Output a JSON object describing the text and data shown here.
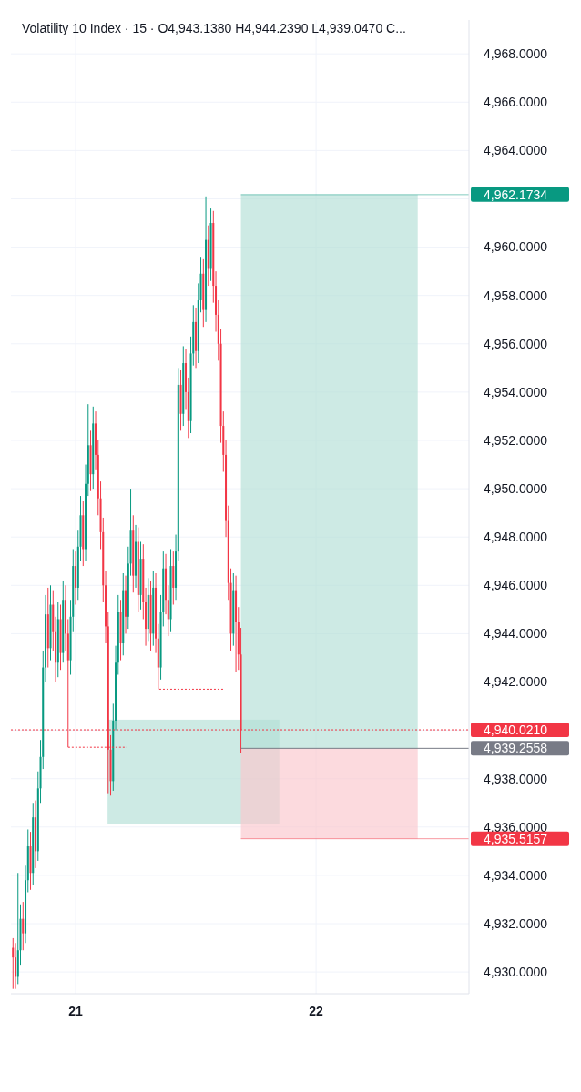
{
  "chart_data": {
    "type": "candlestick",
    "title": "Volatility 10 Index · 15 · O4,943.1380 H4,944.2390 L4,939.0470 C...",
    "x": [
      20.7396,
      20.75,
      20.7604,
      20.7708,
      20.7813,
      20.7917,
      20.8021,
      20.8125,
      20.8229,
      20.8333,
      20.8438,
      20.8542,
      20.8646,
      20.875,
      20.8854,
      20.8958,
      20.9063,
      20.9167,
      20.9271,
      20.9375,
      20.9479,
      20.9583,
      20.9688,
      20.9792,
      20.9896,
      21.0,
      21.0104,
      21.0208,
      21.0313,
      21.0417,
      21.0521,
      21.0625,
      21.0729,
      21.0833,
      21.0938,
      21.1042,
      21.1146,
      21.125,
      21.1354,
      21.1458,
      21.1563,
      21.1667,
      21.1771,
      21.1875,
      21.1979,
      21.2083,
      21.2188,
      21.2292,
      21.2396,
      21.25,
      21.2604,
      21.2708,
      21.2813,
      21.2917,
      21.3021,
      21.3125,
      21.3229,
      21.3333,
      21.3438,
      21.3542,
      21.3646,
      21.375,
      21.3854,
      21.3958,
      21.4063,
      21.4167,
      21.4271,
      21.4375,
      21.4479,
      21.4583,
      21.4688,
      21.4792,
      21.4896,
      21.5,
      21.5104,
      21.5208,
      21.5313,
      21.5417,
      21.5521,
      21.5625,
      21.5729,
      21.5833,
      21.5938,
      21.6042,
      21.6146,
      21.625,
      21.6354,
      21.6458,
      21.6563,
      21.6667,
      21.6771,
      21.6875
    ],
    "ohlc": [
      [
        4931.0,
        4931.4,
        4929.3,
        4930.6
      ],
      [
        4930.6,
        4931.2,
        4929.3,
        4929.8
      ],
      [
        4929.8,
        4934.1,
        4929.5,
        4930.9
      ],
      [
        4930.9,
        4932.8,
        4930.3,
        4932.2
      ],
      [
        4932.2,
        4932.9,
        4930.9,
        4931.6
      ],
      [
        4931.6,
        4934.4,
        4931.2,
        4933.8
      ],
      [
        4933.8,
        4935.9,
        4933.3,
        4935.2
      ],
      [
        4935.2,
        4935.8,
        4933.4,
        4934.1
      ],
      [
        4934.1,
        4937.0,
        4933.6,
        4936.4
      ],
      [
        4936.4,
        4937.1,
        4934.3,
        4935.0
      ],
      [
        4935.0,
        4938.3,
        4934.6,
        4937.6
      ],
      [
        4937.6,
        4939.6,
        4937.0,
        4938.9
      ],
      [
        4938.9,
        4943.3,
        4938.4,
        4942.6
      ],
      [
        4942.6,
        4945.6,
        4942.0,
        4944.8
      ],
      [
        4944.8,
        4945.9,
        4942.6,
        4943.4
      ],
      [
        4943.4,
        4946.0,
        4942.9,
        4945.2
      ],
      [
        4945.2,
        4945.8,
        4943.3,
        4944.1
      ],
      [
        4944.1,
        4944.7,
        4942.0,
        4942.8
      ],
      [
        4942.8,
        4945.3,
        4942.2,
        4944.6
      ],
      [
        4944.6,
        4945.2,
        4942.5,
        4943.2
      ],
      [
        4943.2,
        4946.2,
        4942.8,
        4945.4
      ],
      [
        4945.4,
        4946.0,
        4943.3,
        4944.0
      ],
      [
        4944.0,
        4944.6,
        4939.3,
        4942.9
      ],
      [
        4942.9,
        4945.4,
        4942.3,
        4944.7
      ],
      [
        4944.7,
        4947.5,
        4944.1,
        4946.8
      ],
      [
        4946.8,
        4947.4,
        4945.2,
        4945.9
      ],
      [
        4945.9,
        4948.3,
        4945.4,
        4947.6
      ],
      [
        4947.6,
        4949.7,
        4947.0,
        4948.9
      ],
      [
        4948.9,
        4949.5,
        4946.8,
        4947.5
      ],
      [
        4947.5,
        4951.0,
        4947.0,
        4950.2
      ],
      [
        4950.2,
        4953.5,
        4949.7,
        4951.8
      ],
      [
        4951.8,
        4952.4,
        4949.9,
        4950.6
      ],
      [
        4950.6,
        4953.4,
        4950.0,
        4952.7
      ],
      [
        4952.7,
        4953.2,
        4950.8,
        4951.4
      ],
      [
        4951.4,
        4952.0,
        4948.9,
        4949.6
      ],
      [
        4949.6,
        4950.3,
        4947.5,
        4948.2
      ],
      [
        4948.2,
        4948.8,
        4945.3,
        4946.0
      ],
      [
        4946.0,
        4946.6,
        4943.6,
        4944.3
      ],
      [
        4944.3,
        4944.9,
        4937.4,
        4939.2
      ],
      [
        4939.2,
        4939.8,
        4937.3,
        4937.9
      ],
      [
        4937.9,
        4941.1,
        4937.5,
        4940.4
      ],
      [
        4940.4,
        4943.5,
        4940.0,
        4942.8
      ],
      [
        4942.8,
        4945.6,
        4942.3,
        4944.9
      ],
      [
        4944.9,
        4945.4,
        4942.9,
        4943.6
      ],
      [
        4943.6,
        4946.5,
        4943.1,
        4945.8
      ],
      [
        4945.8,
        4946.4,
        4944.0,
        4944.7
      ],
      [
        4944.7,
        4947.6,
        4944.2,
        4946.9
      ],
      [
        4946.9,
        4950.0,
        4946.4,
        4948.3
      ],
      [
        4948.3,
        4948.9,
        4945.7,
        4946.4
      ],
      [
        4946.4,
        4948.5,
        4945.9,
        4947.8
      ],
      [
        4947.8,
        4948.4,
        4944.9,
        4945.6
      ],
      [
        4945.6,
        4947.8,
        4945.0,
        4947.1
      ],
      [
        4947.1,
        4947.7,
        4944.6,
        4945.3
      ],
      [
        4945.3,
        4945.9,
        4943.5,
        4944.2
      ],
      [
        4944.2,
        4946.3,
        4943.7,
        4945.6
      ],
      [
        4945.6,
        4946.2,
        4943.3,
        4944.0
      ],
      [
        4944.0,
        4946.6,
        4943.5,
        4945.9
      ],
      [
        4945.9,
        4946.5,
        4943.2,
        4943.8
      ],
      [
        4943.8,
        4944.4,
        4941.7,
        4942.6
      ],
      [
        4942.6,
        4945.6,
        4942.1,
        4944.9
      ],
      [
        4944.9,
        4947.4,
        4944.3,
        4946.7
      ],
      [
        4946.7,
        4947.3,
        4944.8,
        4945.4
      ],
      [
        4945.4,
        4946.0,
        4943.9,
        4944.6
      ],
      [
        4944.6,
        4947.5,
        4944.1,
        4946.8
      ],
      [
        4946.8,
        4947.4,
        4945.2,
        4945.9
      ],
      [
        4945.9,
        4948.1,
        4945.4,
        4947.4
      ],
      [
        4947.4,
        4955.0,
        4947.0,
        4954.3
      ],
      [
        4954.3,
        4954.9,
        4952.4,
        4953.1
      ],
      [
        4953.1,
        4955.9,
        4952.6,
        4955.2
      ],
      [
        4955.2,
        4955.8,
        4953.3,
        4954.0
      ],
      [
        4954.0,
        4954.6,
        4952.1,
        4952.8
      ],
      [
        4952.8,
        4956.3,
        4952.3,
        4955.6
      ],
      [
        4955.6,
        4957.6,
        4955.1,
        4956.9
      ],
      [
        4956.9,
        4957.5,
        4955.0,
        4955.7
      ],
      [
        4955.7,
        4958.5,
        4955.2,
        4957.8
      ],
      [
        4957.8,
        4959.6,
        4957.3,
        4958.9
      ],
      [
        4958.9,
        4959.5,
        4956.7,
        4957.4
      ],
      [
        4957.4,
        4962.1,
        4956.9,
        4960.3
      ],
      [
        4960.3,
        4960.9,
        4958.4,
        4959.1
      ],
      [
        4959.1,
        4961.6,
        4958.6,
        4961.0
      ],
      [
        4961.0,
        4961.5,
        4957.7,
        4958.4
      ],
      [
        4958.4,
        4959.0,
        4956.5,
        4957.2
      ],
      [
        4957.2,
        4957.8,
        4955.3,
        4956.0
      ],
      [
        4956.0,
        4956.6,
        4951.9,
        4952.6
      ],
      [
        4952.6,
        4953.2,
        4950.7,
        4951.4
      ],
      [
        4951.4,
        4952.0,
        4948.0,
        4948.7
      ],
      [
        4948.7,
        4949.3,
        4945.4,
        4946.1
      ],
      [
        4946.1,
        4946.7,
        4943.3,
        4944.0
      ],
      [
        4944.0,
        4946.5,
        4943.5,
        4945.8
      ],
      [
        4945.8,
        4946.4,
        4942.4,
        4944.5
      ],
      [
        4944.5,
        4945.1,
        4942.5,
        4943.138
      ],
      [
        4943.138,
        4944.239,
        4939.047,
        4940.021
      ]
    ],
    "colors": [
      "#f23645",
      "#f23645",
      "#089981",
      "#089981",
      "#f23645",
      "#089981",
      "#089981",
      "#f23645",
      "#089981",
      "#f23645",
      "#089981",
      "#089981",
      "#089981",
      "#089981",
      "#f23645",
      "#089981",
      "#f23645",
      "#f23645",
      "#089981",
      "#f23645",
      "#089981",
      "#f23645",
      "#f23645",
      "#089981",
      "#089981",
      "#f23645",
      "#089981",
      "#089981",
      "#f23645",
      "#089981",
      "#089981",
      "#f23645",
      "#089981",
      "#f23645",
      "#f23645",
      "#f23645",
      "#f23645",
      "#f23645",
      "#f23645",
      "#f23645",
      "#089981",
      "#089981",
      "#089981",
      "#f23645",
      "#089981",
      "#f23645",
      "#089981",
      "#089981",
      "#f23645",
      "#089981",
      "#f23645",
      "#089981",
      "#f23645",
      "#f23645",
      "#089981",
      "#f23645",
      "#089981",
      "#f23645",
      "#f23645",
      "#089981",
      "#089981",
      "#f23645",
      "#f23645",
      "#089981",
      "#f23645",
      "#089981",
      "#089981",
      "#f23645",
      "#089981",
      "#f23645",
      "#f23645",
      "#089981",
      "#089981",
      "#f23645",
      "#089981",
      "#089981",
      "#f23645",
      "#089981",
      "#f23645",
      "#089981",
      "#f23645",
      "#f23645",
      "#f23645",
      "#f23645",
      "#f23645",
      "#f23645",
      "#f23645",
      "#f23645",
      "#089981",
      "#f23645",
      "#f23645",
      "#f23645"
    ],
    "xlim": [
      20.731,
      22.636
    ],
    "xticks": [
      {
        "value": 21,
        "label": "21"
      },
      {
        "value": 22,
        "label": "22"
      }
    ],
    "ylim": [
      4929.1,
      4969.4
    ],
    "yticks": [
      {
        "value": 4930,
        "label": "4,930.0000"
      },
      {
        "value": 4932,
        "label": "4,932.0000"
      },
      {
        "value": 4934,
        "label": "4,934.0000"
      },
      {
        "value": 4936,
        "label": "4,936.0000"
      },
      {
        "value": 4938,
        "label": "4,938.0000"
      },
      {
        "value": 4940,
        "label": null
      },
      {
        "value": 4942,
        "label": "4,942.0000"
      },
      {
        "value": 4944,
        "label": "4,944.0000"
      },
      {
        "value": 4946,
        "label": "4,946.0000"
      },
      {
        "value": 4948,
        "label": "4,948.0000"
      },
      {
        "value": 4950,
        "label": "4,950.0000"
      },
      {
        "value": 4952,
        "label": "4,952.0000"
      },
      {
        "value": 4954,
        "label": "4,954.0000"
      },
      {
        "value": 4956,
        "label": "4,956.0000"
      },
      {
        "value": 4958,
        "label": "4,958.0000"
      },
      {
        "value": 4960,
        "label": "4,960.0000"
      },
      {
        "value": 4962,
        "label": null
      },
      {
        "value": 4964,
        "label": "4,964.0000"
      },
      {
        "value": 4966,
        "label": "4,966.0000"
      },
      {
        "value": 4968,
        "label": "4,968.0000"
      }
    ],
    "grid": true,
    "ref_lines": [
      {
        "axis": "y",
        "value": 4962.1734,
        "label": "4,962.1734",
        "color": "#089981",
        "line_style": "solid"
      },
      {
        "axis": "y",
        "value": 4940.021,
        "label": "4,940.0210",
        "color": "#f23645",
        "line_style": "dotted"
      },
      {
        "axis": "y",
        "value": 4939.2558,
        "label": "4,939.2558",
        "color": "#787b86",
        "line_style": "solid"
      },
      {
        "axis": "y",
        "value": 4935.5157,
        "label": "4,935.5157",
        "color": "#f23645",
        "line_style": "solid"
      }
    ]
  }
}
